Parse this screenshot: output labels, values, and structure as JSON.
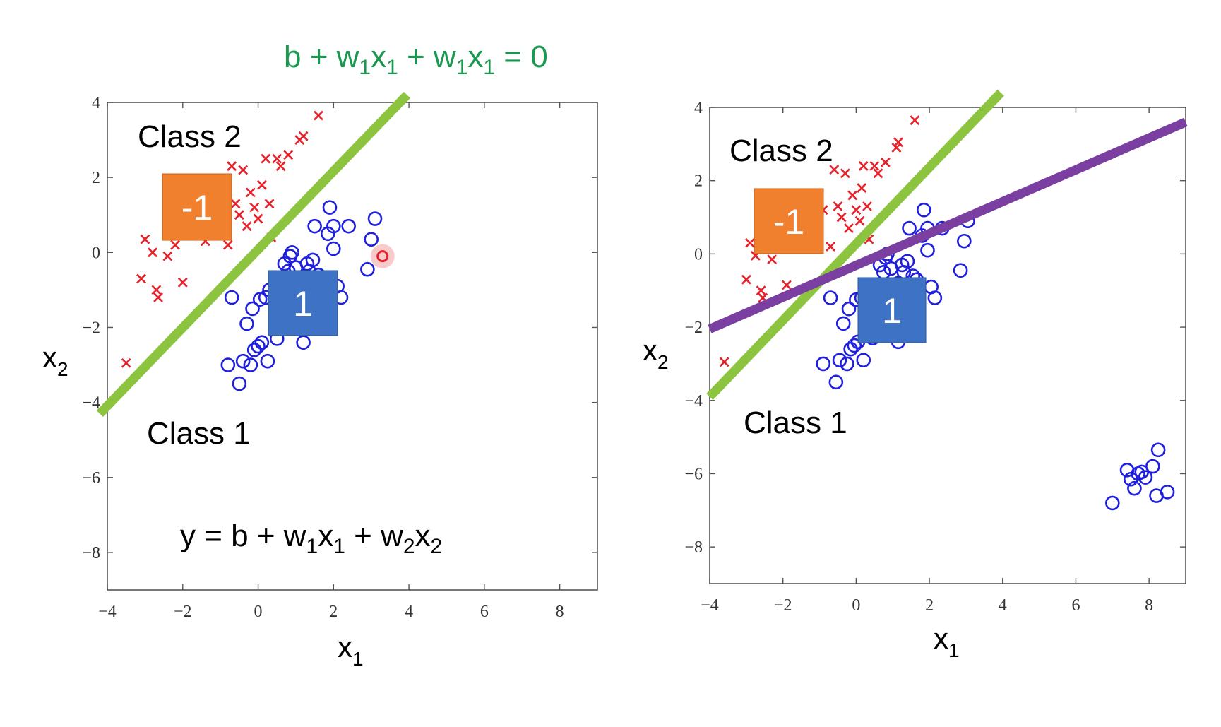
{
  "equation_top": {
    "color": "#1a9850",
    "parts": [
      "b + w",
      "1",
      "x",
      "1",
      " + w",
      "1",
      "x",
      "1",
      " = 0"
    ]
  },
  "equation_left": {
    "color": "#000000",
    "parts": [
      "y = b + w",
      "1",
      "x",
      "1",
      " + w",
      "2",
      "x",
      "2"
    ]
  },
  "colors": {
    "class2": "#e8202a",
    "class1": "#1f1fe0",
    "green_line": "#8cc43f",
    "purple_line": "#7a3fa0",
    "badge_neg": "#f07f2e",
    "badge_pos": "#3d72c4"
  },
  "chart_data": [
    {
      "type": "scatter",
      "xlabel": "x",
      "xlabel_sub": "1",
      "ylabel": "x",
      "ylabel_sub": "2",
      "xlim": [
        -4,
        9
      ],
      "ylim": [
        -9,
        4
      ],
      "xticks": [
        -4,
        -2,
        0,
        2,
        4,
        6,
        8
      ],
      "yticks": [
        4,
        2,
        0,
        -2,
        -4,
        -6,
        -8
      ],
      "labels": {
        "class2": "Class 2",
        "class1": "Class 1",
        "badge_neg": "-1",
        "badge_pos": "1"
      },
      "class2_points": [
        [
          -3.5,
          -2.95
        ],
        [
          -3.1,
          -0.7
        ],
        [
          -3.0,
          0.35
        ],
        [
          -2.8,
          0.0
        ],
        [
          -2.7,
          -1.0
        ],
        [
          -2.65,
          -1.2
        ],
        [
          -2.4,
          -0.1
        ],
        [
          -2.2,
          0.2
        ],
        [
          -2.0,
          -0.8
        ],
        [
          -1.6,
          0.7
        ],
        [
          -1.4,
          0.3
        ],
        [
          -1.2,
          0.8
        ],
        [
          -1.0,
          1.2
        ],
        [
          -0.8,
          0.2
        ],
        [
          -0.7,
          2.3
        ],
        [
          -0.6,
          1.3
        ],
        [
          -0.5,
          1.0
        ],
        [
          -0.4,
          2.2
        ],
        [
          -0.3,
          0.7
        ],
        [
          -0.2,
          1.6
        ],
        [
          -0.1,
          1.2
        ],
        [
          0.0,
          0.9
        ],
        [
          0.1,
          1.8
        ],
        [
          0.2,
          2.5
        ],
        [
          0.3,
          1.3
        ],
        [
          0.35,
          0.4
        ],
        [
          0.5,
          2.5
        ],
        [
          0.6,
          2.3
        ],
        [
          0.8,
          2.6
        ],
        [
          1.1,
          3.0
        ],
        [
          1.2,
          3.1
        ],
        [
          1.6,
          3.65
        ]
      ],
      "class1_points": [
        [
          -0.8,
          -3.0
        ],
        [
          -0.7,
          -1.2
        ],
        [
          -0.5,
          -3.5
        ],
        [
          -0.4,
          -2.9
        ],
        [
          -0.3,
          -1.9
        ],
        [
          -0.2,
          -3.0
        ],
        [
          -0.15,
          -1.5
        ],
        [
          -0.1,
          -2.6
        ],
        [
          0.0,
          -2.5
        ],
        [
          0.05,
          -1.25
        ],
        [
          0.1,
          -2.4
        ],
        [
          0.2,
          -1.2
        ],
        [
          0.25,
          -2.9
        ],
        [
          0.3,
          -1.0
        ],
        [
          0.5,
          -2.3
        ],
        [
          0.7,
          -0.3
        ],
        [
          0.8,
          -0.5
        ],
        [
          0.85,
          -0.1
        ],
        [
          0.9,
          0.0
        ],
        [
          1.0,
          -0.4
        ],
        [
          1.1,
          -1.9
        ],
        [
          1.2,
          -2.4
        ],
        [
          1.2,
          -0.8
        ],
        [
          1.3,
          -0.3
        ],
        [
          1.35,
          -0.5
        ],
        [
          1.45,
          -0.2
        ],
        [
          1.5,
          0.7
        ],
        [
          1.6,
          -0.6
        ],
        [
          1.7,
          -0.7
        ],
        [
          1.85,
          0.5
        ],
        [
          1.9,
          1.2
        ],
        [
          2.0,
          0.7
        ],
        [
          2.0,
          0.1
        ],
        [
          2.1,
          -0.9
        ],
        [
          2.2,
          -1.2
        ],
        [
          2.4,
          0.7
        ],
        [
          3.0,
          0.35
        ],
        [
          3.1,
          0.9
        ],
        [
          2.9,
          -0.45
        ]
      ],
      "outlier": [
        3.3,
        -0.1
      ],
      "lines": [
        {
          "name": "green",
          "from": [
            -4.2,
            -4.3
          ],
          "to": [
            3.95,
            4.2
          ]
        }
      ]
    },
    {
      "type": "scatter",
      "xlabel": "x",
      "xlabel_sub": "1",
      "ylabel": "x",
      "ylabel_sub": "2",
      "xlim": [
        -4,
        9
      ],
      "ylim": [
        -9,
        4
      ],
      "xticks": [
        -4,
        -2,
        0,
        2,
        4,
        6,
        8
      ],
      "yticks": [
        4,
        2,
        0,
        -2,
        -4,
        -6,
        -8
      ],
      "labels": {
        "class2": "Class 2",
        "class1": "Class 1",
        "badge_neg": "-1",
        "badge_pos": "1"
      },
      "class2_points": [
        [
          -3.6,
          -2.95
        ],
        [
          -3.0,
          -0.7
        ],
        [
          -2.9,
          0.3
        ],
        [
          -2.75,
          -0.05
        ],
        [
          -2.6,
          -1.0
        ],
        [
          -2.55,
          -1.2
        ],
        [
          -2.3,
          -0.15
        ],
        [
          -2.1,
          0.2
        ],
        [
          -1.9,
          -0.85
        ],
        [
          -1.5,
          0.7
        ],
        [
          -1.3,
          0.3
        ],
        [
          -1.1,
          0.8
        ],
        [
          -0.9,
          1.2
        ],
        [
          -0.7,
          0.2
        ],
        [
          -0.6,
          2.3
        ],
        [
          -0.5,
          1.3
        ],
        [
          -0.4,
          1.0
        ],
        [
          -0.3,
          2.2
        ],
        [
          -0.2,
          0.7
        ],
        [
          -0.1,
          1.6
        ],
        [
          0.0,
          1.2
        ],
        [
          0.1,
          0.9
        ],
        [
          0.15,
          1.8
        ],
        [
          0.2,
          2.4
        ],
        [
          0.3,
          1.3
        ],
        [
          0.35,
          0.4
        ],
        [
          0.5,
          2.4
        ],
        [
          0.6,
          2.2
        ],
        [
          0.8,
          2.5
        ],
        [
          1.1,
          2.9
        ],
        [
          1.15,
          3.05
        ],
        [
          1.6,
          3.65
        ]
      ],
      "class1_points": [
        [
          -0.9,
          -3.0
        ],
        [
          -0.7,
          -1.2
        ],
        [
          -0.55,
          -3.5
        ],
        [
          -0.45,
          -2.9
        ],
        [
          -0.35,
          -1.9
        ],
        [
          -0.25,
          -3.0
        ],
        [
          -0.2,
          -1.5
        ],
        [
          -0.15,
          -2.6
        ],
        [
          -0.05,
          -2.5
        ],
        [
          0.0,
          -1.25
        ],
        [
          0.05,
          -2.4
        ],
        [
          0.15,
          -1.2
        ],
        [
          0.2,
          -2.9
        ],
        [
          0.25,
          -1.0
        ],
        [
          0.45,
          -2.3
        ],
        [
          0.65,
          -0.3
        ],
        [
          0.75,
          -0.5
        ],
        [
          0.8,
          -0.1
        ],
        [
          0.85,
          0.0
        ],
        [
          0.95,
          -0.4
        ],
        [
          1.05,
          -1.9
        ],
        [
          1.15,
          -2.4
        ],
        [
          1.15,
          -0.8
        ],
        [
          1.25,
          -0.3
        ],
        [
          1.3,
          -0.5
        ],
        [
          1.4,
          -0.2
        ],
        [
          1.45,
          0.7
        ],
        [
          1.55,
          -0.6
        ],
        [
          1.65,
          -0.7
        ],
        [
          1.8,
          0.5
        ],
        [
          1.85,
          1.2
        ],
        [
          1.95,
          0.7
        ],
        [
          1.95,
          0.1
        ],
        [
          2.05,
          -0.9
        ],
        [
          2.15,
          -1.2
        ],
        [
          2.35,
          0.7
        ],
        [
          2.95,
          0.35
        ],
        [
          3.05,
          0.9
        ],
        [
          2.85,
          -0.45
        ],
        [
          7.0,
          -6.8
        ],
        [
          7.4,
          -5.9
        ],
        [
          7.5,
          -6.15
        ],
        [
          7.6,
          -6.4
        ],
        [
          7.7,
          -6.0
        ],
        [
          7.8,
          -5.95
        ],
        [
          7.9,
          -6.1
        ],
        [
          8.1,
          -5.8
        ],
        [
          8.2,
          -6.6
        ],
        [
          8.25,
          -5.35
        ],
        [
          8.5,
          -6.5
        ]
      ],
      "lines": [
        {
          "name": "green",
          "from": [
            -4.0,
            -3.9
          ],
          "to": [
            3.95,
            4.4
          ]
        },
        {
          "name": "purple",
          "from": [
            -4.0,
            -2.05
          ],
          "to": [
            9.0,
            3.6
          ]
        }
      ]
    }
  ]
}
